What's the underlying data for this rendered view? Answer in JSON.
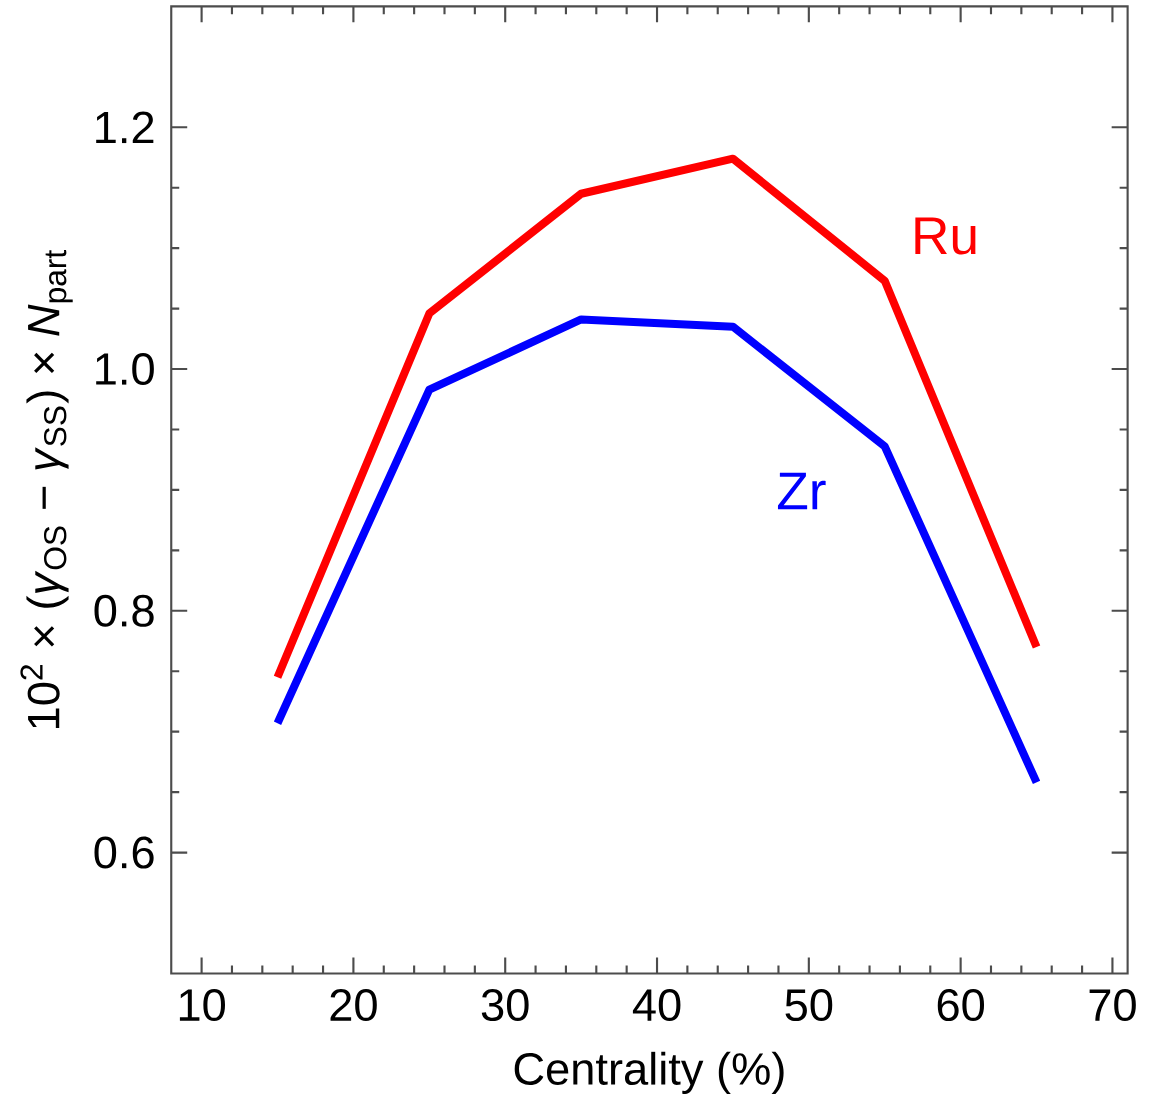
{
  "chart_data": {
    "type": "line",
    "xlabel": "Centrality (%)",
    "ylabel": "10$^{2}$ × (*γ*$_{OS}$ − *γ*$_{SS}$) × *N*$_{part}$",
    "x": [
      15,
      25,
      35,
      45,
      55,
      65
    ],
    "series": [
      {
        "name": "Ru",
        "color": "#ff0000",
        "values": [
          0.745,
          1.046,
          1.145,
          1.174,
          1.073,
          0.77
        ]
      },
      {
        "name": "Zr",
        "color": "#0000ff",
        "values": [
          0.707,
          0.983,
          1.041,
          1.035,
          0.936,
          0.658
        ]
      }
    ],
    "xlim": [
      8,
      71
    ],
    "ylim": [
      0.5,
      1.3
    ],
    "xticks": [
      10,
      20,
      30,
      40,
      50,
      60,
      70
    ],
    "yticks": [
      0.6,
      0.8,
      {
        "value": 1.0,
        "label": "1.0"
      },
      1.2
    ],
    "grid": false,
    "legend": false,
    "marker": "none",
    "line_style": "solid"
  }
}
